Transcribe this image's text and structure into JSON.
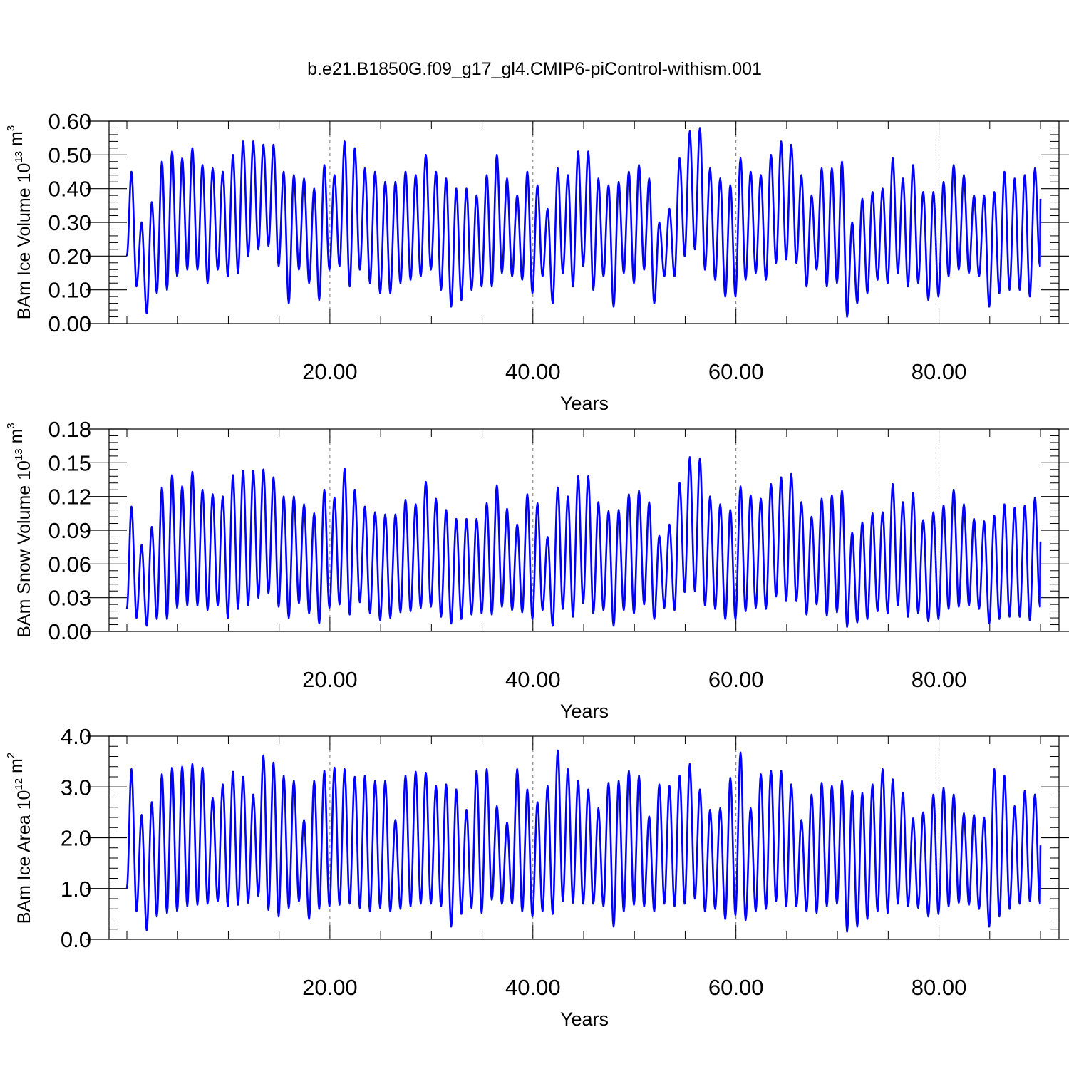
{
  "figure": {
    "title": "b.e21.B1850G.f09_g17_gl4.CMIP6-piControl-withism.001",
    "line_color": "#0000ff"
  },
  "chart_data": [
    {
      "type": "line",
      "title": "",
      "xlabel": "Years",
      "ylabel": "BAm Ice Volume 10",
      "ylabel_exp": "13",
      "ylabel_unit": "m",
      "ylabel_unit_exp": "3",
      "xlim": [
        0,
        90
      ],
      "ylim": [
        0,
        0.6
      ],
      "grid": "vertical dashed at major x ticks",
      "xticks": [
        20,
        40,
        60,
        80
      ],
      "xtick_labels": [
        "20.00",
        "40.00",
        "60.00",
        "80.00"
      ],
      "yticks": [
        0,
        0.1,
        0.2,
        0.3,
        0.4,
        0.5,
        0.6
      ],
      "ytick_labels": [
        "0.00",
        "0.10",
        "0.20",
        "0.30",
        "0.40",
        "0.50",
        "0.60"
      ],
      "series": [
        {
          "peaks": [
            0.45,
            0.3,
            0.36,
            0.48,
            0.51,
            0.49,
            0.52,
            0.47,
            0.46,
            0.45,
            0.5,
            0.54,
            0.54,
            0.53,
            0.53,
            0.45,
            0.44,
            0.43,
            0.4,
            0.47,
            0.44,
            0.54,
            0.52,
            0.46,
            0.45,
            0.42,
            0.42,
            0.45,
            0.44,
            0.5,
            0.45,
            0.43,
            0.4,
            0.4,
            0.38,
            0.44,
            0.5,
            0.43,
            0.38,
            0.45,
            0.41,
            0.34,
            0.46,
            0.44,
            0.51,
            0.51,
            0.43,
            0.41,
            0.42,
            0.45,
            0.47,
            0.43,
            0.3,
            0.34,
            0.49,
            0.57,
            0.58,
            0.46,
            0.43,
            0.41,
            0.49,
            0.45,
            0.44,
            0.5,
            0.54,
            0.53,
            0.44,
            0.38,
            0.46,
            0.46,
            0.48,
            0.3,
            0.37,
            0.39,
            0.4,
            0.49,
            0.43,
            0.47,
            0.39,
            0.39,
            0.42,
            0.47,
            0.44,
            0.38,
            0.38,
            0.39,
            0.45,
            0.43,
            0.44,
            0.46
          ],
          "troughs": [
            0.11,
            0.03,
            0.09,
            0.1,
            0.14,
            0.16,
            0.16,
            0.12,
            0.16,
            0.14,
            0.15,
            0.2,
            0.22,
            0.23,
            0.17,
            0.06,
            0.16,
            0.12,
            0.07,
            0.16,
            0.17,
            0.11,
            0.16,
            0.12,
            0.09,
            0.09,
            0.12,
            0.13,
            0.14,
            0.16,
            0.1,
            0.05,
            0.07,
            0.1,
            0.11,
            0.11,
            0.15,
            0.14,
            0.13,
            0.09,
            0.14,
            0.06,
            0.15,
            0.11,
            0.17,
            0.1,
            0.14,
            0.05,
            0.15,
            0.12,
            0.16,
            0.06,
            0.14,
            0.14,
            0.2,
            0.22,
            0.16,
            0.13,
            0.08,
            0.08,
            0.13,
            0.15,
            0.13,
            0.18,
            0.19,
            0.18,
            0.11,
            0.16,
            0.11,
            0.12,
            0.02,
            0.06,
            0.09,
            0.13,
            0.12,
            0.15,
            0.11,
            0.12,
            0.07,
            0.08,
            0.14,
            0.16,
            0.15,
            0.14,
            0.05,
            0.09,
            0.1,
            0.1,
            0.08,
            0.17
          ],
          "start": 0.2,
          "end": 0.37
        }
      ]
    },
    {
      "type": "line",
      "title": "",
      "xlabel": "Years",
      "ylabel": "BAm Snow Volume 10",
      "ylabel_exp": "13",
      "ylabel_unit": "m",
      "ylabel_unit_exp": "3",
      "xlim": [
        0,
        90
      ],
      "ylim": [
        0,
        0.18
      ],
      "grid": "vertical dashed at major x ticks",
      "xticks": [
        20,
        40,
        60,
        80
      ],
      "xtick_labels": [
        "20.00",
        "40.00",
        "60.00",
        "80.00"
      ],
      "yticks": [
        0,
        0.03,
        0.06,
        0.09,
        0.12,
        0.15,
        0.18
      ],
      "ytick_labels": [
        "0.00",
        "0.03",
        "0.06",
        "0.09",
        "0.12",
        "0.15",
        "0.18"
      ],
      "series": [
        {
          "peaks": [
            0.111,
            0.077,
            0.093,
            0.128,
            0.139,
            0.129,
            0.142,
            0.126,
            0.122,
            0.12,
            0.139,
            0.143,
            0.143,
            0.144,
            0.137,
            0.12,
            0.12,
            0.113,
            0.105,
            0.126,
            0.119,
            0.145,
            0.126,
            0.111,
            0.106,
            0.104,
            0.104,
            0.117,
            0.113,
            0.133,
            0.118,
            0.108,
            0.1,
            0.1,
            0.1,
            0.114,
            0.13,
            0.109,
            0.095,
            0.122,
            0.114,
            0.084,
            0.128,
            0.12,
            0.138,
            0.138,
            0.115,
            0.107,
            0.108,
            0.122,
            0.125,
            0.115,
            0.085,
            0.095,
            0.132,
            0.155,
            0.154,
            0.12,
            0.113,
            0.108,
            0.129,
            0.121,
            0.118,
            0.131,
            0.137,
            0.14,
            0.115,
            0.102,
            0.118,
            0.121,
            0.125,
            0.088,
            0.097,
            0.105,
            0.106,
            0.131,
            0.115,
            0.123,
            0.099,
            0.106,
            0.112,
            0.126,
            0.113,
            0.1,
            0.098,
            0.103,
            0.113,
            0.11,
            0.112,
            0.119
          ],
          "troughs": [
            0.012,
            0.005,
            0.011,
            0.011,
            0.021,
            0.023,
            0.023,
            0.019,
            0.023,
            0.012,
            0.02,
            0.023,
            0.03,
            0.034,
            0.022,
            0.012,
            0.025,
            0.016,
            0.007,
            0.021,
            0.024,
            0.015,
            0.026,
            0.016,
            0.01,
            0.012,
            0.017,
            0.018,
            0.021,
            0.022,
            0.013,
            0.007,
            0.011,
            0.015,
            0.016,
            0.015,
            0.022,
            0.019,
            0.017,
            0.011,
            0.019,
            0.005,
            0.02,
            0.013,
            0.025,
            0.016,
            0.019,
            0.005,
            0.019,
            0.016,
            0.024,
            0.011,
            0.021,
            0.019,
            0.035,
            0.036,
            0.023,
            0.02,
            0.011,
            0.011,
            0.018,
            0.021,
            0.02,
            0.031,
            0.027,
            0.027,
            0.015,
            0.024,
            0.014,
            0.017,
            0.004,
            0.008,
            0.011,
            0.018,
            0.016,
            0.023,
            0.013,
            0.016,
            0.009,
            0.011,
            0.02,
            0.022,
            0.023,
            0.02,
            0.007,
            0.011,
            0.013,
            0.013,
            0.01,
            0.022
          ],
          "start": 0.02,
          "end": 0.08
        }
      ]
    },
    {
      "type": "line",
      "title": "",
      "xlabel": "Years",
      "ylabel": "BAm Ice Area 10",
      "ylabel_exp": "12",
      "ylabel_unit": "m",
      "ylabel_unit_exp": "2",
      "xlim": [
        0,
        90
      ],
      "ylim": [
        0,
        4
      ],
      "grid": "vertical dashed at major x ticks",
      "xticks": [
        20,
        40,
        60,
        80
      ],
      "xtick_labels": [
        "20.00",
        "40.00",
        "60.00",
        "80.00"
      ],
      "yticks": [
        0,
        1,
        2,
        3,
        4
      ],
      "ytick_labels": [
        "0.0",
        "1.0",
        "2.0",
        "3.0",
        "4.0"
      ],
      "series": [
        {
          "peaks": [
            3.35,
            2.45,
            2.7,
            3.25,
            3.38,
            3.4,
            3.45,
            3.38,
            2.78,
            3.05,
            3.3,
            3.2,
            2.85,
            3.62,
            3.48,
            3.22,
            3.12,
            2.35,
            3.12,
            3.32,
            3.38,
            3.35,
            3.2,
            3.22,
            3.12,
            3.12,
            2.35,
            3.22,
            3.3,
            3.28,
            3.02,
            3.05,
            2.95,
            2.55,
            3.32,
            3.35,
            2.62,
            2.3,
            3.35,
            2.95,
            2.7,
            3.02,
            3.72,
            3.35,
            3.12,
            2.95,
            2.58,
            3.08,
            3.12,
            3.32,
            3.22,
            2.42,
            3.05,
            3.02,
            3.22,
            3.45,
            2.95,
            2.55,
            2.58,
            3.18,
            3.68,
            2.58,
            3.25,
            3.32,
            3.32,
            3.05,
            2.35,
            2.85,
            3.08,
            3.02,
            3.12,
            2.92,
            2.88,
            3.05,
            3.35,
            3.15,
            2.88,
            2.38,
            2.5,
            2.85,
            2.98,
            2.85,
            2.48,
            2.45,
            2.4,
            3.35,
            3.22,
            2.62,
            2.92,
            2.85
          ],
          "troughs": [
            0.55,
            0.18,
            0.45,
            0.52,
            0.55,
            0.65,
            0.68,
            0.7,
            0.75,
            0.65,
            0.68,
            0.72,
            0.85,
            0.58,
            0.45,
            0.62,
            0.75,
            0.4,
            0.6,
            0.65,
            0.68,
            0.7,
            0.62,
            0.55,
            0.62,
            0.55,
            0.6,
            0.65,
            0.7,
            0.7,
            0.65,
            0.25,
            0.5,
            0.62,
            0.52,
            0.78,
            0.7,
            0.7,
            0.55,
            0.45,
            0.55,
            0.5,
            0.75,
            0.72,
            0.7,
            0.7,
            0.65,
            0.25,
            0.55,
            0.68,
            0.65,
            0.55,
            0.7,
            0.65,
            0.7,
            0.8,
            0.55,
            0.6,
            0.4,
            0.48,
            0.38,
            0.55,
            0.6,
            0.75,
            0.65,
            0.65,
            0.55,
            0.52,
            0.65,
            0.7,
            0.15,
            0.25,
            0.4,
            0.55,
            0.52,
            0.7,
            0.65,
            0.62,
            0.45,
            0.5,
            0.65,
            0.72,
            0.68,
            0.6,
            0.25,
            0.45,
            0.6,
            0.7,
            0.75,
            0.7
          ],
          "start": 1.0,
          "end": 1.85
        }
      ]
    }
  ]
}
